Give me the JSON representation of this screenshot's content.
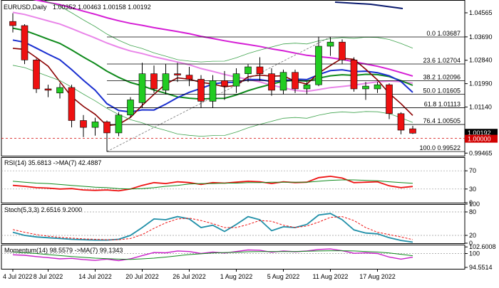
{
  "header": {
    "symbol": "EURUSD,Daily",
    "quote": "1.00352 1.00463 1.00158 1.00192"
  },
  "colors": {
    "bull": "#22cc22",
    "bear": "#ee1111",
    "ma_fast": "#1a2fd0",
    "ma_slow": "#0f8a1c",
    "ma_mid": "#8b0000",
    "ma_pink": "#e985e9",
    "ma_magenta": "#d51ed5",
    "ma_navy": "#0a1a6e",
    "fib": "#000000",
    "current_price": "#d10000"
  },
  "chart_data": [
    {
      "type": "candlestick",
      "panel": "main",
      "ylim": [
        0.9937,
        1.0503
      ],
      "y_ticks": [
        "1.04565",
        "1.03690",
        "1.02840",
        "1.01990",
        "1.01140",
        "1.00192",
        "1.00000",
        "0.99465"
      ],
      "x_ticks": [
        "4 Jul 2022",
        "8 Jul 2022",
        "14 Jul 2022",
        "20 Jul 2022",
        "26 Jul 2022",
        "1 Aug 2022",
        "5 Aug 2022",
        "11 Aug 2022",
        "17 Aug 2022"
      ],
      "candles": [
        {
          "o": 1.0425,
          "h": 1.0455,
          "l": 1.0385,
          "c": 1.041
        },
        {
          "o": 1.041,
          "h": 1.0415,
          "l": 1.027,
          "c": 1.0285
        },
        {
          "o": 1.0285,
          "h": 1.029,
          "l": 1.0165,
          "c": 1.018
        },
        {
          "o": 1.018,
          "h": 1.0195,
          "l": 1.015,
          "c": 1.0175
        },
        {
          "o": 1.0165,
          "h": 1.02,
          "l": 1.0145,
          "c": 1.0185
        },
        {
          "o": 1.0185,
          "h": 1.0195,
          "l": 1.004,
          "c": 1.0065
        },
        {
          "o": 1.0065,
          "h": 1.0085,
          "l": 1.0005,
          "c": 1.004
        },
        {
          "o": 1.004,
          "h": 1.0075,
          "l": 1.001,
          "c": 1.006
        },
        {
          "o": 1.006,
          "h": 1.0065,
          "l": 0.9952,
          "c": 1.002
        },
        {
          "o": 1.002,
          "h": 1.0095,
          "l": 1.0008,
          "c": 1.0085
        },
        {
          "o": 1.0085,
          "h": 1.015,
          "l": 1.0075,
          "c": 1.014
        },
        {
          "o": 1.013,
          "h": 1.0275,
          "l": 1.011,
          "c": 1.0235
        },
        {
          "o": 1.0235,
          "h": 1.0265,
          "l": 1.0165,
          "c": 1.018
        },
        {
          "o": 1.0175,
          "h": 1.027,
          "l": 1.016,
          "c": 1.0235
        },
        {
          "o": 1.0235,
          "h": 1.0275,
          "l": 1.0205,
          "c": 1.023
        },
        {
          "o": 1.023,
          "h": 1.026,
          "l": 1.019,
          "c": 1.0215
        },
        {
          "o": 1.0215,
          "h": 1.023,
          "l": 1.011,
          "c": 1.0135
        },
        {
          "o": 1.0135,
          "h": 1.023,
          "l": 1.011,
          "c": 1.021
        },
        {
          "o": 1.021,
          "h": 1.0245,
          "l": 1.014,
          "c": 1.019
        },
        {
          "o": 1.019,
          "h": 1.0255,
          "l": 1.0165,
          "c": 1.0235
        },
        {
          "o": 1.0235,
          "h": 1.027,
          "l": 1.0205,
          "c": 1.026
        },
        {
          "o": 1.026,
          "h": 1.0295,
          "l": 1.021,
          "c": 1.0235
        },
        {
          "o": 1.0235,
          "h": 1.0255,
          "l": 1.0155,
          "c": 1.0175
        },
        {
          "o": 1.0175,
          "h": 1.025,
          "l": 1.016,
          "c": 1.024
        },
        {
          "o": 1.024,
          "h": 1.025,
          "l": 1.0165,
          "c": 1.018
        },
        {
          "o": 1.018,
          "h": 1.0205,
          "l": 1.016,
          "c": 1.0195
        },
        {
          "o": 1.0195,
          "h": 1.037,
          "l": 1.019,
          "c": 1.0335
        },
        {
          "o": 1.0335,
          "h": 1.0368,
          "l": 1.03,
          "c": 1.035
        },
        {
          "o": 1.035,
          "h": 1.036,
          "l": 1.027,
          "c": 1.0285
        },
        {
          "o": 1.0285,
          "h": 1.0295,
          "l": 1.017,
          "c": 1.018
        },
        {
          "o": 1.018,
          "h": 1.0205,
          "l": 1.014,
          "c": 1.019
        },
        {
          "o": 1.018,
          "h": 1.0205,
          "l": 1.0165,
          "c": 1.0195
        },
        {
          "o": 1.0195,
          "h": 1.02,
          "l": 1.007,
          "c": 1.009
        },
        {
          "o": 1.009,
          "h": 1.0095,
          "l": 1.0015,
          "c": 1.003
        },
        {
          "o": 1.0035,
          "h": 1.0046,
          "l": 1.0016,
          "c": 1.0019
        }
      ],
      "fib_levels": [
        {
          "label": "0.0 1.03687",
          "value": 1.03687
        },
        {
          "label": "23.6 1.02704",
          "value": 1.02704
        },
        {
          "label": "38.2 1.02096",
          "value": 1.02096
        },
        {
          "label": "50.0 1.01605",
          "value": 1.01605
        },
        {
          "label": "61.8 1.01113",
          "value": 1.01113
        },
        {
          "label": "76.4 1.00505",
          "value": 1.00505
        },
        {
          "label": "100.0 0.99522",
          "value": 0.99522
        }
      ],
      "current_price": "1.00192",
      "parity_level": "1.00000"
    },
    {
      "type": "line",
      "panel": "rsi",
      "label": "RSI(14) 35.6813 ->MA(7) 42.4887",
      "ylim": [
        0,
        100
      ],
      "y_ticks": [
        "70",
        "30",
        "0"
      ],
      "series": [
        {
          "values": [
            38,
            36,
            33,
            32,
            30,
            31,
            28,
            27,
            28,
            26,
            30,
            38,
            44,
            42,
            46,
            44,
            40,
            44,
            43,
            45,
            47,
            46,
            42,
            46,
            44,
            45,
            55,
            58,
            54,
            44,
            45,
            46,
            37,
            33,
            35.7
          ]
        },
        {
          "values": [
            47,
            45,
            43,
            42,
            40,
            38,
            36,
            34,
            33,
            31,
            30,
            31,
            33,
            36,
            38,
            41,
            42,
            42,
            43,
            43,
            44,
            44,
            45,
            45,
            45,
            45,
            47,
            49,
            50,
            50,
            49,
            48,
            46,
            44,
            42.5
          ]
        }
      ]
    },
    {
      "type": "line",
      "panel": "stoch",
      "label": "Stoch(5,3,3) 2.6516 9.2000",
      "ylim": [
        0,
        100
      ],
      "y_ticks": [
        "100",
        "80",
        "20",
        "0"
      ],
      "series": [
        {
          "values": [
            28,
            20,
            16,
            14,
            12,
            10,
            9,
            8,
            8,
            10,
            20,
            40,
            62,
            60,
            68,
            62,
            40,
            46,
            30,
            48,
            68,
            60,
            32,
            42,
            40,
            48,
            72,
            76,
            60,
            34,
            26,
            24,
            14,
            7,
            2.7
          ]
        },
        {
          "values": [
            35,
            28,
            22,
            18,
            15,
            13,
            11,
            10,
            9,
            9,
            12,
            22,
            38,
            52,
            62,
            64,
            58,
            50,
            40,
            40,
            48,
            58,
            56,
            46,
            40,
            44,
            54,
            66,
            68,
            58,
            40,
            28,
            22,
            16,
            9.2
          ]
        }
      ]
    },
    {
      "type": "line",
      "panel": "momentum",
      "label": "Momentum(14) 98.5579 ->MA(7) 99.1343",
      "ylim": [
        94.0,
        103.5
      ],
      "y_ticks": [
        "102.6008",
        "100",
        "94.5514"
      ],
      "series": [
        {
          "values": [
            99.5,
            99.3,
            98.8,
            98.4,
            97.9,
            98.1,
            97.6,
            97.3,
            97.8,
            97.2,
            97.9,
            99.2,
            100.4,
            100.3,
            101.0,
            100.8,
            100.0,
            100.6,
            100.2,
            100.8,
            101.4,
            101.3,
            100.5,
            101.0,
            100.7,
            101.0,
            101.6,
            101.8,
            101.1,
            100.1,
            100.3,
            100.0,
            98.6,
            97.8,
            98.56
          ]
        },
        {
          "values": [
            100.6,
            100.3,
            100.0,
            99.6,
            99.2,
            98.8,
            98.5,
            98.2,
            98.0,
            97.8,
            97.7,
            97.9,
            98.2,
            98.6,
            99.1,
            99.6,
            99.9,
            100.2,
            100.4,
            100.5,
            100.7,
            100.8,
            100.8,
            100.8,
            100.8,
            100.9,
            101.0,
            101.1,
            101.1,
            101.0,
            100.8,
            100.6,
            100.2,
            99.7,
            99.13
          ]
        }
      ]
    }
  ]
}
